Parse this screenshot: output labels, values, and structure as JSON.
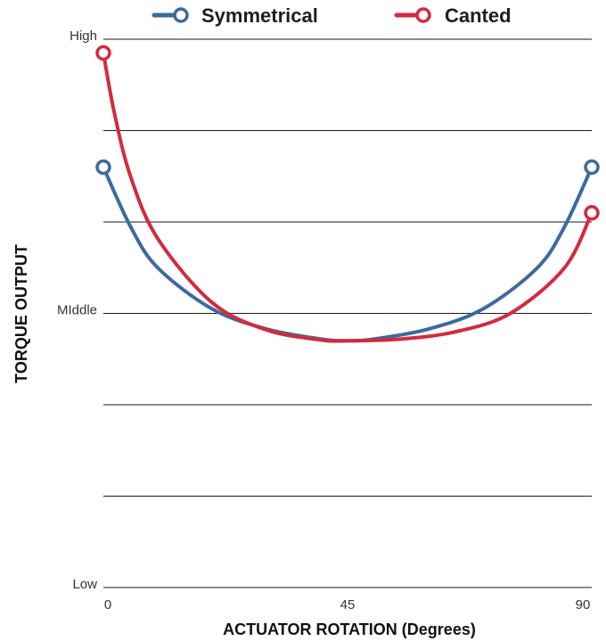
{
  "chart_data": {
    "type": "line",
    "xlabel": "ACTUATOR ROTATION (Degrees)",
    "ylabel": "TORQUE OUTPUT",
    "xlim": [
      0,
      90
    ],
    "ylim": [
      0,
      6
    ],
    "x_ticks": [
      {
        "value": 0,
        "label": "0"
      },
      {
        "value": 45,
        "label": "45"
      },
      {
        "value": 90,
        "label": "90"
      }
    ],
    "y_ticks": [
      {
        "value": 0,
        "label": "Low"
      },
      {
        "value": 3,
        "label": "MIddle"
      },
      {
        "value": 6,
        "label": "High"
      }
    ],
    "gridlines_y": [
      0,
      1,
      2,
      3,
      4,
      5,
      6
    ],
    "legend_position": "top-center",
    "series": [
      {
        "name": "Symmetrical",
        "color": "#3d6a9e",
        "marker": "open-circle",
        "points": [
          {
            "x": 0,
            "y": 4.6
          },
          {
            "x": 5,
            "y": 3.95
          },
          {
            "x": 10,
            "y": 3.5
          },
          {
            "x": 20,
            "y": 3.05
          },
          {
            "x": 30,
            "y": 2.83
          },
          {
            "x": 40,
            "y": 2.72
          },
          {
            "x": 45,
            "y": 2.7
          },
          {
            "x": 50,
            "y": 2.72
          },
          {
            "x": 60,
            "y": 2.83
          },
          {
            "x": 70,
            "y": 3.05
          },
          {
            "x": 80,
            "y": 3.5
          },
          {
            "x": 85,
            "y": 3.95
          },
          {
            "x": 90,
            "y": 4.6
          }
        ]
      },
      {
        "name": "Canted",
        "color": "#d42a3f",
        "marker": "open-circle",
        "points": [
          {
            "x": 0,
            "y": 5.85
          },
          {
            "x": 2,
            "y": 5.2
          },
          {
            "x": 5,
            "y": 4.5
          },
          {
            "x": 10,
            "y": 3.82
          },
          {
            "x": 20,
            "y": 3.12
          },
          {
            "x": 30,
            "y": 2.82
          },
          {
            "x": 40,
            "y": 2.71
          },
          {
            "x": 45,
            "y": 2.7
          },
          {
            "x": 55,
            "y": 2.72
          },
          {
            "x": 65,
            "y": 2.8
          },
          {
            "x": 75,
            "y": 3.0
          },
          {
            "x": 85,
            "y": 3.5
          },
          {
            "x": 90,
            "y": 4.1
          }
        ]
      }
    ]
  }
}
